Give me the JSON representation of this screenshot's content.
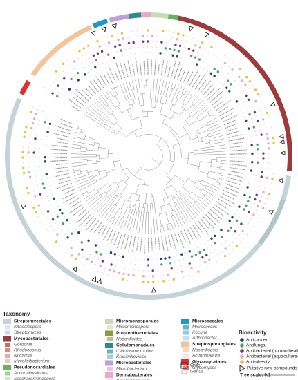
{
  "taxonomy": {
    "title": "Taxonomy",
    "columns": [
      [
        {
          "order": "Streptomycetales",
          "color": "#c3d3d6",
          "genera": [
            {
              "name": "Kitasatospora",
              "color": "#dbe6e8"
            },
            {
              "name": "Streptomyces",
              "color": "#cddcdf"
            }
          ]
        },
        {
          "order": "Mycobacteriales",
          "color": "#9e3a3a",
          "genera": [
            {
              "name": "Gordonia",
              "color": "#c46a6a"
            },
            {
              "name": "Rhodococcus",
              "color": "#d48a88"
            },
            {
              "name": "Nocardia",
              "color": "#e2a9a7"
            },
            {
              "name": "Mycolicibacterium",
              "color": "#eec7c5"
            }
          ]
        },
        {
          "order": "Pseudonocardiales",
          "color": "#5fb55a",
          "genera": [
            {
              "name": "Actinoalloteichus",
              "color": "#9fd39a"
            },
            {
              "name": "Saccharomonospora",
              "color": "#c9e7c5"
            }
          ]
        }
      ],
      [
        {
          "order": "Micromonosporales",
          "color": "#c7dcb4",
          "genera": [
            {
              "name": "Micromonospora",
              "color": "#dcead0"
            }
          ]
        },
        {
          "order": "Propionibacteriales",
          "color": "#8c9a4c",
          "genera": [
            {
              "name": "Nocardioides",
              "color": "#b9c38a"
            }
          ]
        },
        {
          "order": "Cellulomonadales",
          "color": "#2e8b8b",
          "genera": [
            {
              "name": "Cellulosimicrobium",
              "color": "#6fb5b5"
            },
            {
              "name": "Krasilnikoviella",
              "color": "#a6d2d2"
            }
          ]
        },
        {
          "order": "Microbacteriales",
          "color": "#c19fd8",
          "genera": [
            {
              "name": "Microbacterium",
              "color": "#dcc8ea"
            }
          ]
        },
        {
          "order": "Dermabacterales",
          "color": "#f0a6c9",
          "genera": [
            {
              "name": "Brachybacterium",
              "color": "#f7cde0"
            }
          ]
        }
      ],
      [
        {
          "order": "Micrococcales",
          "color": "#1f9bc2",
          "genera": [
            {
              "name": "Micrococcus",
              "color": "#5db7d6"
            },
            {
              "name": "Kocuria",
              "color": "#8ccbe2"
            },
            {
              "name": "Arthrobacter",
              "color": "#bde1ee"
            }
          ]
        },
        {
          "order": "Streptosporangiales",
          "color": "#f3c49a",
          "genera": [
            {
              "name": "Nocardiopsis",
              "color": "#f7d8bc"
            },
            {
              "name": "Actinomadura",
              "color": "#fbe8d6"
            }
          ]
        },
        {
          "order": "Glycomycetales",
          "color": "#e02e2e",
          "genera": [
            {
              "name": "Glycomyces",
              "color": "#ee7b7b"
            }
          ]
        }
      ]
    ],
    "order_key": "Order",
    "genus_key": "Genus"
  },
  "bioactivity": {
    "title": "Bioactivity",
    "items": [
      {
        "name": "Anticancer",
        "color": "#1b3f8f"
      },
      {
        "name": "Antifungal",
        "color": "#4aa35a"
      },
      {
        "name": "Antibacterial (human health-relevant strains)",
        "color": "#8b2a7a"
      },
      {
        "name": "Antibacterial (aquaculture-relevant strains)",
        "color": "#e8a6cf"
      },
      {
        "name": "Anti-obesity",
        "color": "#f2c12e"
      }
    ],
    "putative": "Putative new compounds"
  },
  "tree_scale": "Tree scale: 0.1"
}
